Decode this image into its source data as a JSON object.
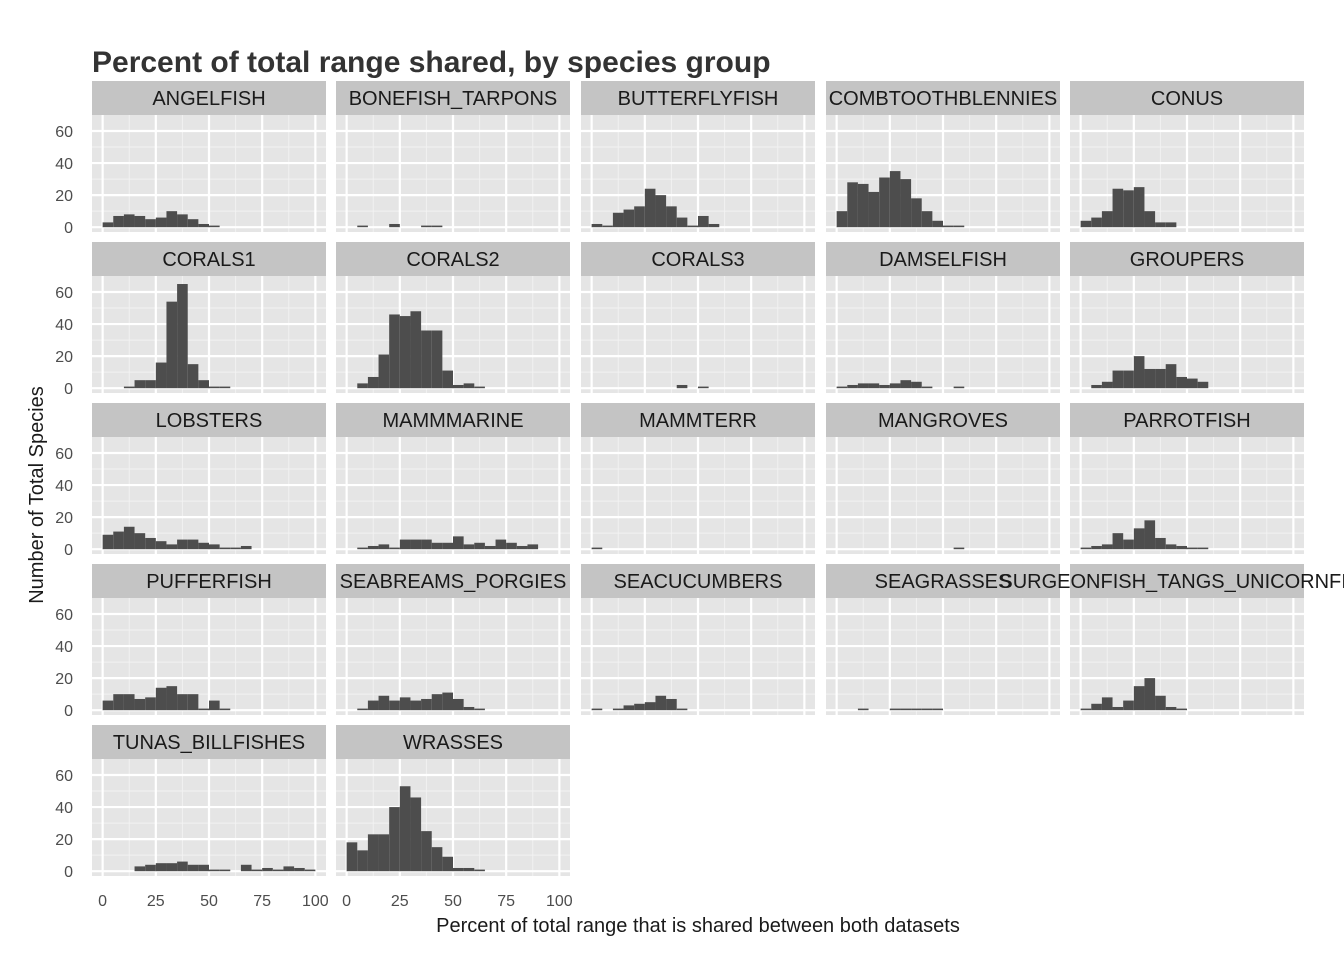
{
  "chart_data": {
    "type": "bar",
    "title": "Percent of total range shared, by species group",
    "xlabel": "Percent of total range that is shared between both datasets",
    "ylabel": "Number of Total Species",
    "xlim": [
      -5,
      105
    ],
    "ylim": [
      -3,
      70
    ],
    "x_ticks": [
      0,
      25,
      50,
      75,
      100
    ],
    "y_ticks": [
      0,
      20,
      40,
      60
    ],
    "bin_width": 5,
    "bin_starts": [
      0,
      5,
      10,
      15,
      20,
      25,
      30,
      35,
      40,
      45,
      50,
      55,
      60,
      65,
      70,
      75,
      80,
      85,
      90,
      95
    ],
    "grid": true,
    "bar_color": "#4d4d4d",
    "panel_bg": "#e5e5e5",
    "strip_bg": "#c4c4c4",
    "panels": [
      {
        "name": "ANGELFISH",
        "values": [
          3,
          7,
          8,
          7,
          5,
          6,
          10,
          8,
          5,
          2,
          1,
          0,
          0,
          0,
          0,
          0,
          0,
          0,
          0,
          0
        ]
      },
      {
        "name": "BONEFISH_TARPONS",
        "values": [
          0,
          1,
          0,
          0,
          2,
          0,
          0,
          1,
          1,
          0,
          0,
          0,
          0,
          0,
          0,
          0,
          0,
          0,
          0,
          0
        ]
      },
      {
        "name": "BUTTERFLYFISH",
        "values": [
          2,
          1,
          9,
          11,
          13,
          24,
          20,
          13,
          6,
          1,
          7,
          2,
          0,
          0,
          0,
          0,
          0,
          0,
          0,
          0
        ]
      },
      {
        "name": "COMBTOOTHBLENNIES",
        "values": [
          10,
          28,
          27,
          22,
          31,
          35,
          30,
          18,
          10,
          4,
          1,
          1,
          0,
          0,
          0,
          0,
          0,
          0,
          0,
          0
        ]
      },
      {
        "name": "CONUS",
        "values": [
          4,
          6,
          10,
          24,
          23,
          25,
          10,
          3,
          3,
          0,
          0,
          0,
          0,
          0,
          0,
          0,
          0,
          0,
          0,
          0
        ]
      },
      {
        "name": "CORALS1",
        "values": [
          0,
          0,
          1,
          5,
          5,
          16,
          54,
          65,
          15,
          5,
          1,
          1,
          0,
          0,
          0,
          0,
          0,
          0,
          0,
          0
        ]
      },
      {
        "name": "CORALS2",
        "values": [
          0,
          3,
          7,
          21,
          46,
          45,
          48,
          36,
          36,
          11,
          2,
          3,
          1,
          0,
          0,
          0,
          0,
          0,
          0,
          0
        ]
      },
      {
        "name": "CORALS3",
        "values": [
          0,
          0,
          0,
          0,
          0,
          0,
          0,
          0,
          2,
          0,
          1,
          0,
          0,
          0,
          0,
          0,
          0,
          0,
          0,
          0
        ]
      },
      {
        "name": "DAMSELFISH",
        "values": [
          1,
          2,
          3,
          3,
          2,
          3,
          5,
          4,
          1,
          0,
          0,
          1,
          0,
          0,
          0,
          0,
          0,
          0,
          0,
          0
        ]
      },
      {
        "name": "GROUPERS",
        "values": [
          0,
          2,
          4,
          11,
          11,
          20,
          12,
          12,
          15,
          7,
          6,
          4,
          0,
          0,
          0,
          0,
          0,
          0,
          0,
          0
        ]
      },
      {
        "name": "LOBSTERS",
        "values": [
          9,
          11,
          14,
          10,
          7,
          5,
          3,
          6,
          6,
          4,
          3,
          1,
          1,
          2,
          0,
          0,
          0,
          0,
          0,
          0
        ]
      },
      {
        "name": "MAMMMARINE",
        "values": [
          0,
          1,
          2,
          3,
          1,
          6,
          6,
          6,
          4,
          4,
          8,
          3,
          4,
          2,
          6,
          4,
          2,
          3,
          0,
          0
        ]
      },
      {
        "name": "MAMMTERR",
        "values": [
          1,
          0,
          0,
          0,
          0,
          0,
          0,
          0,
          0,
          0,
          0,
          0,
          0,
          0,
          0,
          0,
          0,
          0,
          0,
          0
        ]
      },
      {
        "name": "MANGROVES",
        "values": [
          0,
          0,
          0,
          0,
          0,
          0,
          0,
          0,
          0,
          0,
          0,
          1,
          0,
          0,
          0,
          0,
          0,
          0,
          0,
          0
        ]
      },
      {
        "name": "PARROTFISH",
        "values": [
          1,
          2,
          3,
          10,
          6,
          13,
          18,
          7,
          3,
          2,
          1,
          1,
          0,
          0,
          0,
          0,
          0,
          0,
          0,
          0
        ]
      },
      {
        "name": "PUFFERFISH",
        "values": [
          6,
          10,
          10,
          7,
          8,
          14,
          15,
          10,
          10,
          1,
          6,
          1,
          0,
          0,
          0,
          0,
          0,
          0,
          0,
          0
        ]
      },
      {
        "name": "SEABREAMS_PORGIES",
        "values": [
          0,
          1,
          6,
          9,
          6,
          8,
          6,
          7,
          10,
          11,
          7,
          2,
          1,
          0,
          0,
          0,
          0,
          0,
          0,
          0
        ]
      },
      {
        "name": "SEACUCUMBERS",
        "values": [
          1,
          0,
          1,
          3,
          4,
          5,
          9,
          7,
          1,
          0,
          0,
          0,
          0,
          0,
          0,
          0,
          0,
          0,
          0,
          0
        ]
      },
      {
        "name": "SEAGRASSES",
        "values": [
          0,
          0,
          1,
          0,
          0,
          1,
          1,
          1,
          1,
          1,
          0,
          0,
          0,
          0,
          0,
          0,
          0,
          0,
          0,
          0
        ]
      },
      {
        "name": "SURGEONFISH_TANGS_UNICORNFISH",
        "values": [
          1,
          4,
          8,
          2,
          6,
          15,
          20,
          9,
          2,
          1,
          0,
          0,
          0,
          0,
          0,
          0,
          0,
          0,
          0,
          0
        ]
      },
      {
        "name": "TUNAS_BILLFISHES",
        "values": [
          0,
          0,
          0,
          3,
          4,
          5,
          5,
          6,
          4,
          4,
          1,
          1,
          0,
          4,
          1,
          2,
          1,
          3,
          2,
          1
        ]
      },
      {
        "name": "WRASSES",
        "values": [
          18,
          13,
          23,
          23,
          40,
          53,
          46,
          25,
          15,
          9,
          2,
          2,
          1,
          0,
          0,
          0,
          0,
          0,
          0,
          0
        ]
      }
    ]
  }
}
